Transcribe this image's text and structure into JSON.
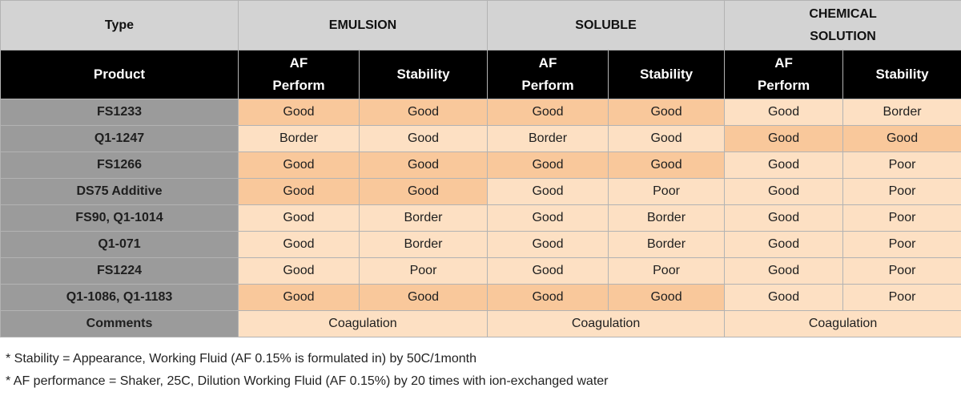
{
  "header": {
    "type_label": "Type",
    "groups": [
      "EMULSION",
      "SOLUBLE",
      "CHEMICAL SOLUTION"
    ],
    "chemical_line1": "CHEMICAL",
    "chemical_line2": "SOLUTION",
    "product_label": "Product",
    "af_line1": "AF",
    "af_line2": "Perform",
    "stability_label": "Stability"
  },
  "colors": {
    "strong": "#f9c89b",
    "light": "#fde0c3",
    "product": "#9b9b9b",
    "header": "#000000",
    "type": "#d3d3d3"
  },
  "rows": [
    {
      "product": "FS1233",
      "values": [
        "Good",
        "Good",
        "Good",
        "Good",
        "Good",
        "Border"
      ],
      "shade": [
        "strong",
        "strong",
        "strong",
        "strong",
        "light",
        "light"
      ]
    },
    {
      "product": "Q1-1247",
      "values": [
        "Border",
        "Good",
        "Border",
        "Good",
        "Good",
        "Good"
      ],
      "shade": [
        "light",
        "light",
        "light",
        "light",
        "strong",
        "strong"
      ]
    },
    {
      "product": "FS1266",
      "values": [
        "Good",
        "Good",
        "Good",
        "Good",
        "Good",
        "Poor"
      ],
      "shade": [
        "strong",
        "strong",
        "strong",
        "strong",
        "light",
        "light"
      ]
    },
    {
      "product": "DS75 Additive",
      "values": [
        "Good",
        "Good",
        "Good",
        "Poor",
        "Good",
        "Poor"
      ],
      "shade": [
        "strong",
        "strong",
        "light",
        "light",
        "light",
        "light"
      ]
    },
    {
      "product": "FS90, Q1-1014",
      "values": [
        "Good",
        "Border",
        "Good",
        "Border",
        "Good",
        "Poor"
      ],
      "shade": [
        "light",
        "light",
        "light",
        "light",
        "light",
        "light"
      ]
    },
    {
      "product": "Q1-071",
      "values": [
        "Good",
        "Border",
        "Good",
        "Border",
        "Good",
        "Poor"
      ],
      "shade": [
        "light",
        "light",
        "light",
        "light",
        "light",
        "light"
      ]
    },
    {
      "product": "FS1224",
      "values": [
        "Good",
        "Poor",
        "Good",
        "Poor",
        "Good",
        "Poor"
      ],
      "shade": [
        "light",
        "light",
        "light",
        "light",
        "light",
        "light"
      ]
    },
    {
      "product": "Q1-1086, Q1-1183",
      "values": [
        "Good",
        "Good",
        "Good",
        "Good",
        "Good",
        "Poor"
      ],
      "shade": [
        "strong",
        "strong",
        "strong",
        "strong",
        "light",
        "light"
      ]
    }
  ],
  "comments": {
    "label": "Comments",
    "values": [
      "Coagulation",
      "Coagulation",
      "Coagulation"
    ]
  },
  "notes": [
    "* Stability = Appearance, Working Fluid (AF 0.15% is formulated in) by 50C/1month",
    "* AF performance = Shaker, 25C, Dilution Working Fluid (AF 0.15%) by 20 times with ion-exchanged water"
  ]
}
